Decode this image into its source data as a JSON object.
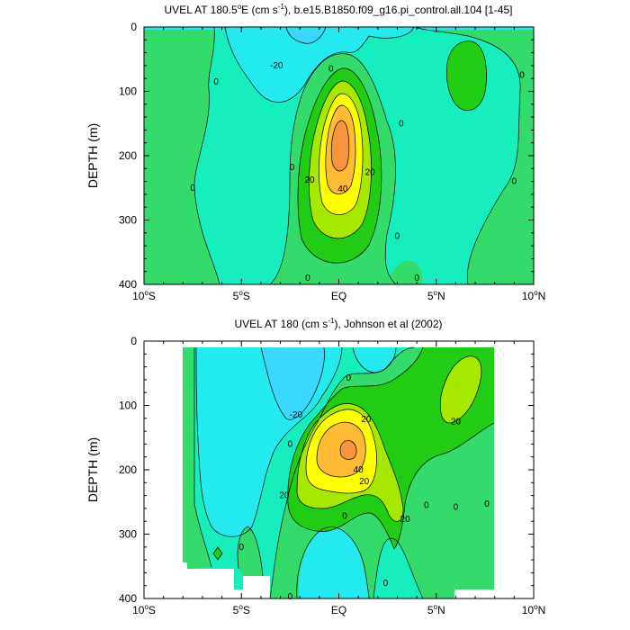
{
  "chart_data": [
    {
      "type": "contour",
      "title": "UVEL AT 180.5",
      "title_sup": "o",
      "title_mid": "E (cm s",
      "title_sup2": "-1",
      "title_rest": "), b.e15.B1850.f09_g16.pi_control.all.104 [1-45]",
      "ylabel": "DEPTH (m)",
      "y_ticks": [
        "0",
        "100",
        "200",
        "300",
        "400"
      ],
      "x_ticks": [
        {
          "num": "10",
          "sup": "o",
          "hem": "S"
        },
        {
          "num": "5",
          "sup": "o",
          "hem": "S"
        },
        {
          "num": "EQ",
          "sup": "",
          "hem": ""
        },
        {
          "num": "5",
          "sup": "o",
          "hem": "N"
        },
        {
          "num": "10",
          "sup": "o",
          "hem": "N"
        }
      ],
      "xlim": [
        -10,
        10
      ],
      "ylim": [
        400,
        0
      ],
      "contour_interval": 10,
      "max_core": {
        "lat": 0,
        "depth": 160,
        "value": 50
      },
      "contour_labels": [
        {
          "text": "-20",
          "lat": -3.2,
          "depth": 60
        },
        {
          "text": "0",
          "lat": -6.3,
          "depth": 85
        },
        {
          "text": "0",
          "lat": -7.5,
          "depth": 250
        },
        {
          "text": "0",
          "lat": -2.4,
          "depth": 218
        },
        {
          "text": "0",
          "lat": -1.6,
          "depth": 390
        },
        {
          "text": "20",
          "lat": -1.5,
          "depth": 238
        },
        {
          "text": "40",
          "lat": 0.2,
          "depth": 252
        },
        {
          "text": "20",
          "lat": 1.6,
          "depth": 226
        },
        {
          "text": "0",
          "lat": -0.4,
          "depth": 65
        },
        {
          "text": "0",
          "lat": 3.2,
          "depth": 150
        },
        {
          "text": "0",
          "lat": 3.0,
          "depth": 325
        },
        {
          "text": "0",
          "lat": 4.0,
          "depth": 390
        },
        {
          "text": "0",
          "lat": 9.0,
          "depth": 240
        },
        {
          "text": "0",
          "lat": 9.4,
          "depth": 75
        }
      ]
    },
    {
      "type": "contour",
      "title": "UVEL AT 180 (cm s",
      "title_sup": "-1",
      "title_rest": "), Johnson et al (2002)",
      "ylabel": "DEPTH (m)",
      "y_ticks": [
        "0",
        "100",
        "200",
        "300",
        "400"
      ],
      "x_ticks": [
        {
          "num": "10",
          "sup": "o",
          "hem": "S"
        },
        {
          "num": "5",
          "sup": "o",
          "hem": "S"
        },
        {
          "num": "EQ",
          "sup": "",
          "hem": ""
        },
        {
          "num": "5",
          "sup": "o",
          "hem": "N"
        },
        {
          "num": "10",
          "sup": "o",
          "hem": "N"
        }
      ],
      "xlim": [
        -10,
        10
      ],
      "ylim": [
        400,
        0
      ],
      "data_extent": {
        "lat": [
          -8,
          8
        ],
        "depth": [
          10,
          400
        ]
      },
      "contour_interval": 10,
      "max_core": {
        "lat": 0.3,
        "depth": 170,
        "value": 50
      },
      "contour_labels": [
        {
          "text": "-20",
          "lat": -2.2,
          "depth": 115
        },
        {
          "text": "20",
          "lat": 1.4,
          "depth": 122
        },
        {
          "text": "20",
          "lat": 6.0,
          "depth": 125
        },
        {
          "text": "0",
          "lat": 0.5,
          "depth": 57
        },
        {
          "text": "0",
          "lat": -2.5,
          "depth": 160
        },
        {
          "text": "20",
          "lat": -2.8,
          "depth": 240
        },
        {
          "text": "40",
          "lat": 1.0,
          "depth": 200
        },
        {
          "text": "20",
          "lat": 1.3,
          "depth": 218
        },
        {
          "text": "20",
          "lat": 3.4,
          "depth": 277
        },
        {
          "text": "0",
          "lat": 0.3,
          "depth": 272
        },
        {
          "text": "0",
          "lat": 4.5,
          "depth": 255
        },
        {
          "text": "0",
          "lat": 6.0,
          "depth": 258
        },
        {
          "text": "0",
          "lat": 7.6,
          "depth": 253
        },
        {
          "text": "0",
          "lat": -5.0,
          "depth": 320
        },
        {
          "text": "0",
          "lat": 2.4,
          "depth": 376
        },
        {
          "text": "0",
          "lat": -2.5,
          "depth": 397
        }
      ]
    }
  ],
  "palette": {
    "below_m30": "#4ba9ff",
    "m30_m20": "#3ad8ff",
    "m20_m10": "#22eaee",
    "m10_0": "#16efbd",
    "0_10": "#33dc6a",
    "10_20": "#20cc14",
    "20_30": "#a7e800",
    "30_40": "#ffff00",
    "40_50": "#ffbb33",
    "above_50": "#f7943e"
  }
}
